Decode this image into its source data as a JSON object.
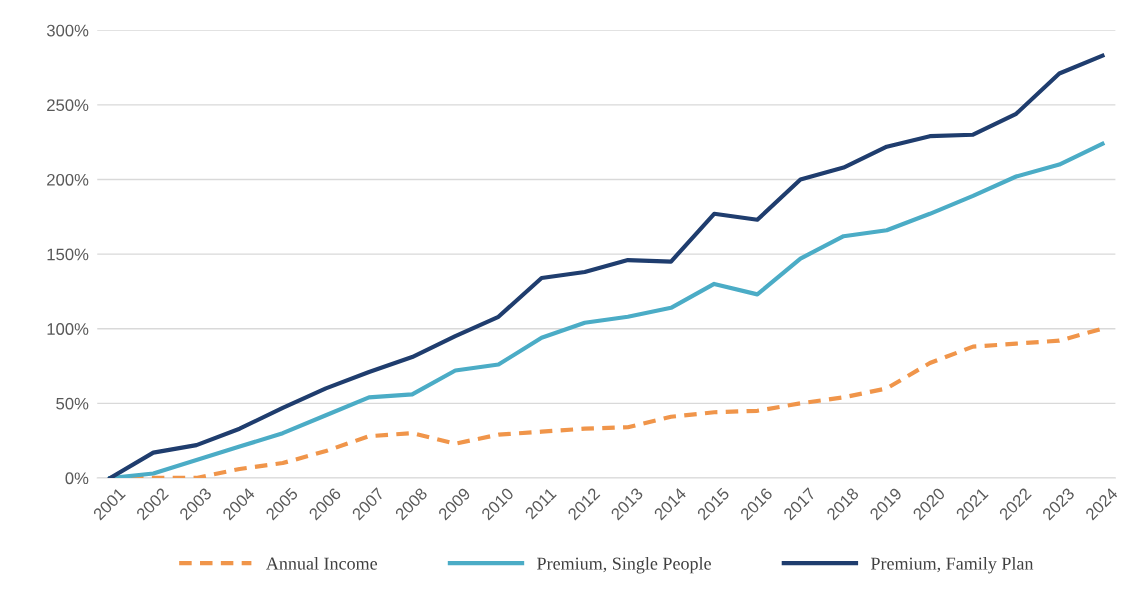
{
  "chart_data": {
    "type": "line",
    "categories": [
      "2001",
      "2002",
      "2003",
      "2004",
      "2005",
      "2006",
      "2007",
      "2008",
      "2009",
      "2010",
      "2011",
      "2012",
      "2013",
      "2014",
      "2015",
      "2016",
      "2017",
      "2018",
      "2019",
      "2020",
      "2021",
      "2022",
      "2023",
      "2024"
    ],
    "series": [
      {
        "name": "Annual Income",
        "color": "#f0954a",
        "line_style": "dashed",
        "values": [
          0,
          0,
          0,
          6,
          10,
          18,
          28,
          30,
          23,
          29,
          31,
          33,
          34,
          41,
          44,
          45,
          50,
          54,
          60,
          77,
          88,
          90,
          92,
          100
        ]
      },
      {
        "name": "Premium, Single People",
        "color": "#4bacc6",
        "line_style": "solid",
        "values": [
          0,
          3,
          12,
          21,
          30,
          42,
          54,
          56,
          72,
          76,
          94,
          104,
          108,
          114,
          130,
          123,
          147,
          162,
          166,
          177,
          189,
          202,
          210,
          224
        ]
      },
      {
        "name": "Premium, Family Plan",
        "color": "#1f3d6e",
        "line_style": "solid",
        "values": [
          0,
          17,
          22,
          33,
          47,
          60,
          71,
          81,
          95,
          108,
          134,
          138,
          146,
          145,
          177,
          173,
          200,
          208,
          222,
          229,
          230,
          244,
          271,
          283
        ]
      }
    ],
    "ylim": [
      0,
      300
    ],
    "yticks": [
      {
        "value": 0,
        "label": "0%"
      },
      {
        "value": 50,
        "label": "50%"
      },
      {
        "value": 100,
        "label": "100%"
      },
      {
        "value": 150,
        "label": "150%"
      },
      {
        "value": 200,
        "label": "200%"
      },
      {
        "value": 250,
        "label": "250%"
      },
      {
        "value": 300,
        "label": "300%"
      }
    ],
    "grid": "y",
    "legend": "bottom",
    "marker": "none"
  }
}
